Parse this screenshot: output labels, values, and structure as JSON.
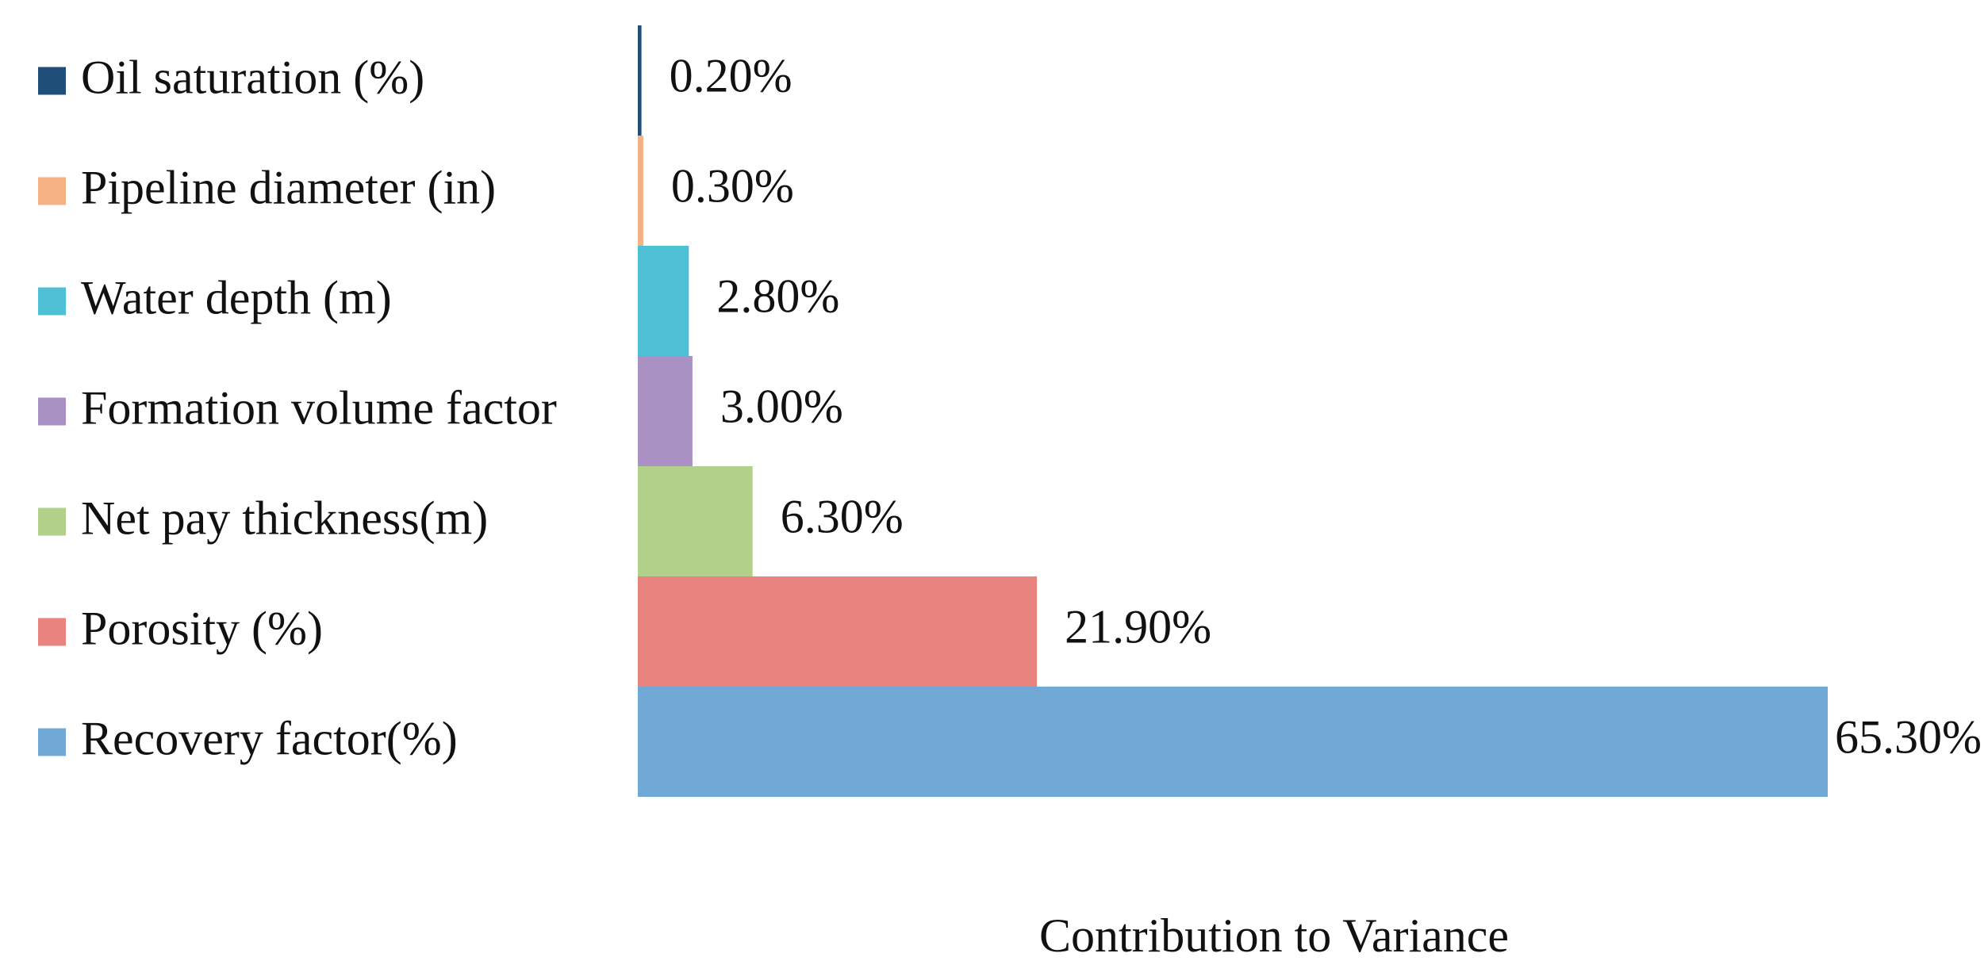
{
  "chart_data": {
    "type": "hbar",
    "categories": [
      "Oil saturation (%)",
      "Pipeline diameter (in)",
      "Water depth (m)",
      "Formation volume factor",
      "Net pay thickness(m)",
      "Porosity (%)",
      "Recovery factor(%)"
    ],
    "values": [
      0.2,
      0.3,
      2.8,
      3.0,
      6.3,
      21.9,
      65.3
    ],
    "value_labels": [
      "0.20%",
      "0.30%",
      "2.80%",
      "3.00%",
      "6.30%",
      "21.90%",
      "65.30%"
    ],
    "colors": [
      "#1f4e79",
      "#f4b183",
      "#4fc1d6",
      "#a991c4",
      "#b2d08a",
      "#e98380",
      "#70a8d6"
    ],
    "xlabel": "Contribution to Variance"
  }
}
